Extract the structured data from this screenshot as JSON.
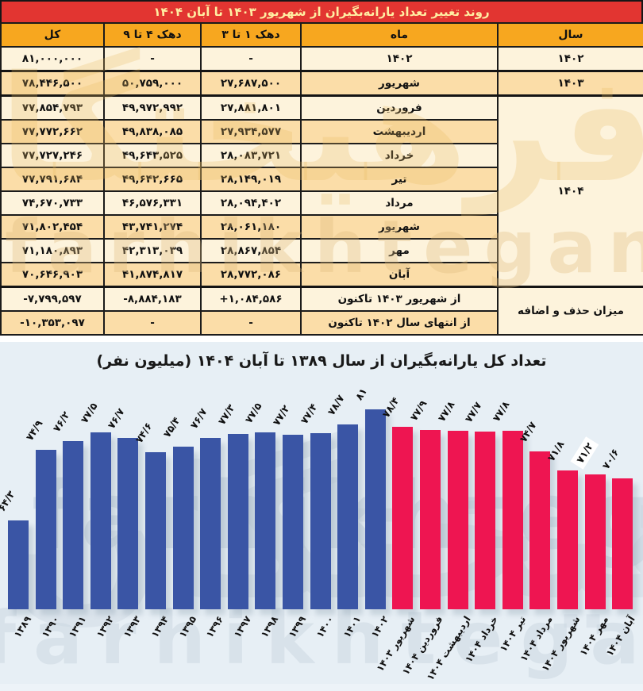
{
  "table": {
    "title": "روند تغییر تعداد یارانه‌بگیران از شهریور ۱۴۰۳ تا آبان ۱۴۰۴",
    "headers": {
      "year": "سال",
      "month": "ماه",
      "decile1_3": "دهک ۱ تا ۳",
      "decile4_9": "دهک ۴ تا ۹",
      "total": "کل"
    },
    "year_groups": [
      {
        "label": "۱۴۰۲",
        "rows": 1
      },
      {
        "label": "۱۴۰۳",
        "rows": 1
      },
      {
        "label": "۱۴۰۴",
        "rows": 8
      },
      {
        "label": "میزان حذف و اضافه",
        "rows": 2
      }
    ],
    "rows": [
      {
        "month": "۱۴۰۲",
        "d13": "-",
        "d49": "-",
        "total": "۸۱,۰۰۰,۰۰۰"
      },
      {
        "month": "شهریور",
        "d13": "۲۷,۶۸۷,۵۰۰",
        "d49": "۵۰,۷۵۹,۰۰۰",
        "total": "۷۸,۴۴۶,۵۰۰"
      },
      {
        "month": "فروردین",
        "d13": "۲۷,۸۸۱,۸۰۱",
        "d49": "۴۹,۹۷۲,۹۹۲",
        "total": "۷۷,۸۵۴,۷۹۳"
      },
      {
        "month": "اردیبهشت",
        "d13": "۲۷,۹۳۴,۵۷۷",
        "d49": "۴۹,۸۳۸,۰۸۵",
        "total": "۷۷,۷۷۲,۶۶۲"
      },
      {
        "month": "خرداد",
        "d13": "۲۸,۰۸۳,۷۲۱",
        "d49": "۴۹,۶۴۳,۵۲۵",
        "total": "۷۷,۷۲۷,۲۴۶"
      },
      {
        "month": "تیر",
        "d13": "۲۸,۱۴۹,۰۱۹",
        "d49": "۴۹,۶۴۲,۶۶۵",
        "total": "۷۷,۷۹۱,۶۸۴"
      },
      {
        "month": "مرداد",
        "d13": "۲۸,۰۹۴,۴۰۲",
        "d49": "۴۶,۵۷۶,۳۳۱",
        "total": "۷۴,۶۷۰,۷۳۳"
      },
      {
        "month": "شهریور",
        "d13": "۲۸,۰۶۱,۱۸۰",
        "d49": "۴۳,۷۴۱,۲۷۴",
        "total": "۷۱,۸۰۲,۴۵۴"
      },
      {
        "month": "مهر",
        "d13": "۲۸,۸۶۷,۸۵۴",
        "d49": "۴۲,۳۱۳,۰۳۹",
        "total": "۷۱,۱۸۰,۸۹۳"
      },
      {
        "month": "آبان",
        "d13": "۲۸,۷۷۲,۰۸۶",
        "d49": "۴۱,۸۷۴,۸۱۷",
        "total": "۷۰,۶۴۶,۹۰۳"
      },
      {
        "month": "از شهریور ۱۴۰۳ تاکنون",
        "d13": "+۱,۰۸۴,۵۸۶",
        "d49": "-۸,۸۸۴,۱۸۳",
        "total": "-۷,۷۹۹,۵۹۷"
      },
      {
        "month": "از انتهای سال ۱۴۰۲ تاکنون",
        "d13": "-",
        "d49": "-",
        "total": "-۱۰,۳۵۳,۰۹۷"
      }
    ],
    "colors": {
      "title_bg": "#e23531",
      "title_text": "#ffeea2",
      "header_bg": "#f7a71f",
      "row_cream": "#fdf3dc",
      "row_amber": "#fbdda8"
    }
  },
  "chart_data": {
    "type": "bar",
    "title": "تعداد کل یارانه‌بگیران از سال ۱۳۸۹ تا آبان ۱۴۰۴ (میلیون نفر)",
    "xlabel": "",
    "ylabel": "میلیون نفر",
    "ylim": [
      51,
      82
    ],
    "grid": false,
    "legend": "none",
    "categories": [
      "۱۳۸۹",
      "۱۳۹۰",
      "۱۳۹۱",
      "۱۳۹۲",
      "۱۳۹۳",
      "۱۳۹۴",
      "۱۳۹۵",
      "۱۳۹۶",
      "۱۳۹۷",
      "۱۳۹۸",
      "۱۳۹۹",
      "۱۴۰۰",
      "۱۴۰۱",
      "۱۴۰۲",
      "شهریور ۱۴۰۳",
      "فروردین ۱۴۰۴",
      "اردیبهشت ۱۴۰۴",
      "خرداد ۱۴۰۴",
      "تیر ۱۴۰۴",
      "مرداد ۱۴۰۴",
      "شهریور ۱۴۰۴",
      "مهر ۱۴۰۴",
      "آبان ۱۴۰۴"
    ],
    "values": [
      64.3,
      74.9,
      76.2,
      77.5,
      76.7,
      74.6,
      75.4,
      76.7,
      77.3,
      77.5,
      77.2,
      77.4,
      78.7,
      81,
      78.4,
      77.9,
      77.8,
      77.7,
      77.8,
      74.7,
      71.8,
      71.2,
      70.6
    ],
    "value_labels": [
      "۶۴/۳",
      "۷۴/۹",
      "۷۶/۲",
      "۷۷/۵",
      "۷۶/۷",
      "۷۴/۶",
      "۷۵/۴",
      "۷۶/۷",
      "۷۷/۳",
      "۷۷/۵",
      "۷۷/۲",
      "۷۷/۴",
      "۷۸/۷",
      "۸۱",
      "۷۸/۴",
      "۷۷/۹",
      "۷۷/۸",
      "۷۷/۷",
      "۷۷/۸",
      "۷۴/۷",
      "۷۱/۸",
      "۷۱/۲",
      "۷۰/۶"
    ],
    "split_index": 14,
    "highlight_label_index": 21,
    "colors": {
      "annual_bars": "#3a55a5",
      "monthly_bars": "#ee1551",
      "background": "#e7eff5"
    }
  },
  "watermark": {
    "persian": "فرهیختگان",
    "latin": "farhikhtegan"
  }
}
